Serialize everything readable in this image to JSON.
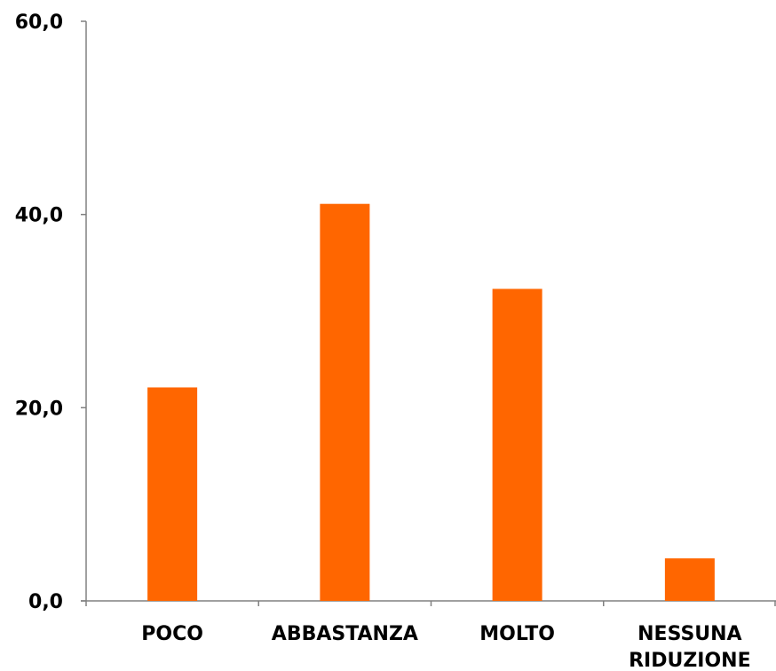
{
  "chart_data": {
    "type": "bar",
    "title": "",
    "xlabel": "",
    "ylabel": "",
    "categories": [
      [
        "POCO"
      ],
      [
        "ABBASTANZA"
      ],
      [
        "MOLTO"
      ],
      [
        "NESSUNA",
        "RIDUZIONE"
      ]
    ],
    "values": [
      22.1,
      41.1,
      32.3,
      4.4
    ],
    "ylim": [
      0,
      60
    ],
    "y_ticks": [
      0,
      20,
      40,
      60
    ],
    "y_tick_labels": [
      "0,0",
      "20,0",
      "40,0",
      "60,0"
    ],
    "grid": false,
    "legend": "none",
    "bar_color": "#FF6600",
    "axis_color": "#808080"
  }
}
